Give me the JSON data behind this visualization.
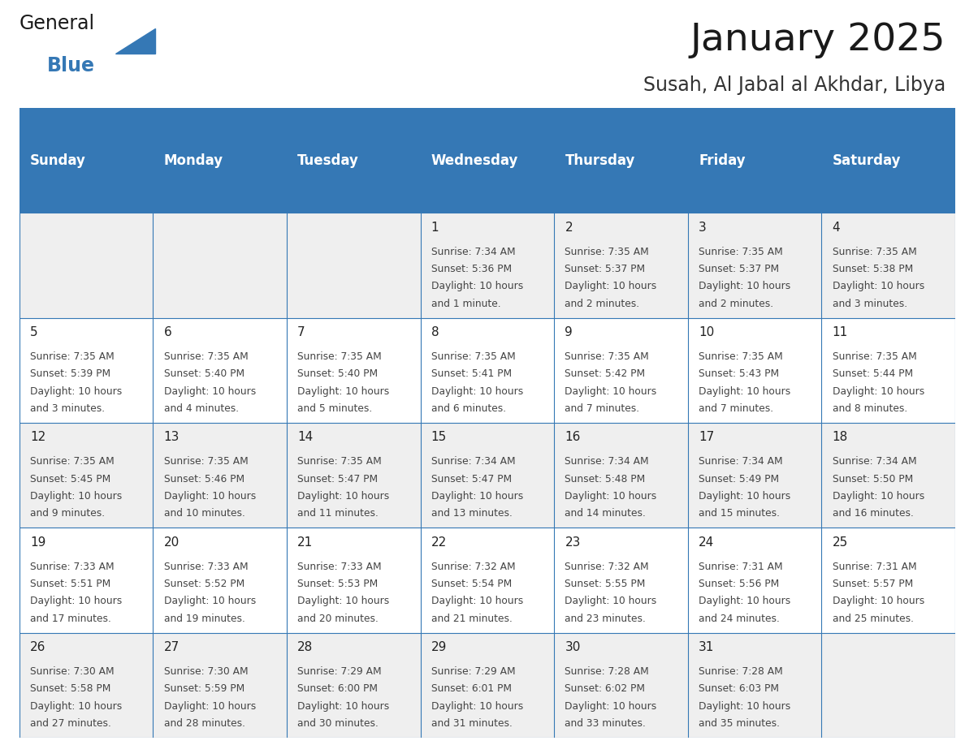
{
  "title": "January 2025",
  "subtitle": "Susah, Al Jabal al Akhdar, Libya",
  "header_bg_color": "#3578B5",
  "header_text_color": "#FFFFFF",
  "cell_bg_color": "#FFFFFF",
  "cell_alt_bg_color": "#EFEFEF",
  "border_color": "#3578B5",
  "day_names": [
    "Sunday",
    "Monday",
    "Tuesday",
    "Wednesday",
    "Thursday",
    "Friday",
    "Saturday"
  ],
  "title_color": "#1a1a1a",
  "subtitle_color": "#333333",
  "day_number_color": "#222222",
  "cell_text_color": "#444444",
  "calendar_data": [
    [
      null,
      null,
      null,
      {
        "day": 1,
        "sunrise": "7:34 AM",
        "sunset": "5:36 PM",
        "daylight": "10 hours",
        "daylight2": "and 1 minute."
      },
      {
        "day": 2,
        "sunrise": "7:35 AM",
        "sunset": "5:37 PM",
        "daylight": "10 hours",
        "daylight2": "and 2 minutes."
      },
      {
        "day": 3,
        "sunrise": "7:35 AM",
        "sunset": "5:37 PM",
        "daylight": "10 hours",
        "daylight2": "and 2 minutes."
      },
      {
        "day": 4,
        "sunrise": "7:35 AM",
        "sunset": "5:38 PM",
        "daylight": "10 hours",
        "daylight2": "and 3 minutes."
      }
    ],
    [
      {
        "day": 5,
        "sunrise": "7:35 AM",
        "sunset": "5:39 PM",
        "daylight": "10 hours",
        "daylight2": "and 3 minutes."
      },
      {
        "day": 6,
        "sunrise": "7:35 AM",
        "sunset": "5:40 PM",
        "daylight": "10 hours",
        "daylight2": "and 4 minutes."
      },
      {
        "day": 7,
        "sunrise": "7:35 AM",
        "sunset": "5:40 PM",
        "daylight": "10 hours",
        "daylight2": "and 5 minutes."
      },
      {
        "day": 8,
        "sunrise": "7:35 AM",
        "sunset": "5:41 PM",
        "daylight": "10 hours",
        "daylight2": "and 6 minutes."
      },
      {
        "day": 9,
        "sunrise": "7:35 AM",
        "sunset": "5:42 PM",
        "daylight": "10 hours",
        "daylight2": "and 7 minutes."
      },
      {
        "day": 10,
        "sunrise": "7:35 AM",
        "sunset": "5:43 PM",
        "daylight": "10 hours",
        "daylight2": "and 7 minutes."
      },
      {
        "day": 11,
        "sunrise": "7:35 AM",
        "sunset": "5:44 PM",
        "daylight": "10 hours",
        "daylight2": "and 8 minutes."
      }
    ],
    [
      {
        "day": 12,
        "sunrise": "7:35 AM",
        "sunset": "5:45 PM",
        "daylight": "10 hours",
        "daylight2": "and 9 minutes."
      },
      {
        "day": 13,
        "sunrise": "7:35 AM",
        "sunset": "5:46 PM",
        "daylight": "10 hours",
        "daylight2": "and 10 minutes."
      },
      {
        "day": 14,
        "sunrise": "7:35 AM",
        "sunset": "5:47 PM",
        "daylight": "10 hours",
        "daylight2": "and 11 minutes."
      },
      {
        "day": 15,
        "sunrise": "7:34 AM",
        "sunset": "5:47 PM",
        "daylight": "10 hours",
        "daylight2": "and 13 minutes."
      },
      {
        "day": 16,
        "sunrise": "7:34 AM",
        "sunset": "5:48 PM",
        "daylight": "10 hours",
        "daylight2": "and 14 minutes."
      },
      {
        "day": 17,
        "sunrise": "7:34 AM",
        "sunset": "5:49 PM",
        "daylight": "10 hours",
        "daylight2": "and 15 minutes."
      },
      {
        "day": 18,
        "sunrise": "7:34 AM",
        "sunset": "5:50 PM",
        "daylight": "10 hours",
        "daylight2": "and 16 minutes."
      }
    ],
    [
      {
        "day": 19,
        "sunrise": "7:33 AM",
        "sunset": "5:51 PM",
        "daylight": "10 hours",
        "daylight2": "and 17 minutes."
      },
      {
        "day": 20,
        "sunrise": "7:33 AM",
        "sunset": "5:52 PM",
        "daylight": "10 hours",
        "daylight2": "and 19 minutes."
      },
      {
        "day": 21,
        "sunrise": "7:33 AM",
        "sunset": "5:53 PM",
        "daylight": "10 hours",
        "daylight2": "and 20 minutes."
      },
      {
        "day": 22,
        "sunrise": "7:32 AM",
        "sunset": "5:54 PM",
        "daylight": "10 hours",
        "daylight2": "and 21 minutes."
      },
      {
        "day": 23,
        "sunrise": "7:32 AM",
        "sunset": "5:55 PM",
        "daylight": "10 hours",
        "daylight2": "and 23 minutes."
      },
      {
        "day": 24,
        "sunrise": "7:31 AM",
        "sunset": "5:56 PM",
        "daylight": "10 hours",
        "daylight2": "and 24 minutes."
      },
      {
        "day": 25,
        "sunrise": "7:31 AM",
        "sunset": "5:57 PM",
        "daylight": "10 hours",
        "daylight2": "and 25 minutes."
      }
    ],
    [
      {
        "day": 26,
        "sunrise": "7:30 AM",
        "sunset": "5:58 PM",
        "daylight": "10 hours",
        "daylight2": "and 27 minutes."
      },
      {
        "day": 27,
        "sunrise": "7:30 AM",
        "sunset": "5:59 PM",
        "daylight": "10 hours",
        "daylight2": "and 28 minutes."
      },
      {
        "day": 28,
        "sunrise": "7:29 AM",
        "sunset": "6:00 PM",
        "daylight": "10 hours",
        "daylight2": "and 30 minutes."
      },
      {
        "day": 29,
        "sunrise": "7:29 AM",
        "sunset": "6:01 PM",
        "daylight": "10 hours",
        "daylight2": "and 31 minutes."
      },
      {
        "day": 30,
        "sunrise": "7:28 AM",
        "sunset": "6:02 PM",
        "daylight": "10 hours",
        "daylight2": "and 33 minutes."
      },
      {
        "day": 31,
        "sunrise": "7:28 AM",
        "sunset": "6:03 PM",
        "daylight": "10 hours",
        "daylight2": "and 35 minutes."
      },
      null
    ]
  ],
  "logo_general_color": "#1a1a1a",
  "logo_blue_color": "#3578B5",
  "header_font_size": 12,
  "day_number_font_size": 11,
  "cell_text_font_size": 8.8,
  "title_font_size": 34,
  "subtitle_font_size": 17
}
